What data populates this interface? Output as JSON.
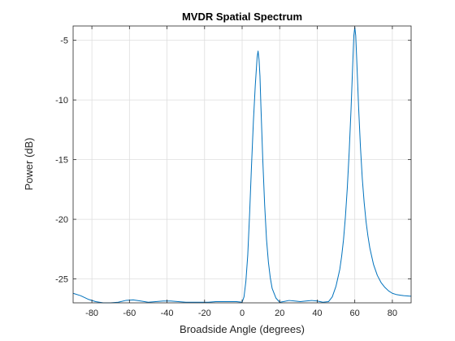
{
  "chart_data": {
    "type": "line",
    "title": "MVDR Spatial Spectrum",
    "xlabel": "Broadside Angle (degrees)",
    "ylabel": "Power (dB)",
    "xlim": [
      -90,
      90
    ],
    "ylim": [
      -27,
      -3.8
    ],
    "xticks": [
      -80,
      -60,
      -40,
      -20,
      0,
      20,
      40,
      60,
      80
    ],
    "yticks": [
      -5,
      -10,
      -15,
      -20,
      -25
    ],
    "grid": true,
    "legend": "none",
    "series": [
      {
        "color": "#0072BD",
        "x": [
          -90,
          -86,
          -82,
          -78,
          -74,
          -70,
          -66,
          -62,
          -58,
          -54,
          -50,
          -46,
          -42,
          -38,
          -34,
          -30,
          -26,
          -22,
          -18,
          -14,
          -10,
          -6,
          -3,
          0,
          1,
          2,
          3,
          4,
          5,
          6,
          7,
          8,
          8.5,
          9,
          9.5,
          10,
          11,
          12,
          13,
          14,
          15,
          16,
          18,
          20,
          22,
          25,
          28,
          31,
          34,
          37,
          40,
          43,
          46,
          48,
          50,
          52,
          53,
          54,
          55,
          56,
          57,
          58,
          59,
          59.5,
          60,
          60.5,
          61,
          62,
          63,
          64,
          65,
          66,
          67,
          68,
          70,
          72,
          74,
          76,
          78,
          80,
          82,
          84,
          86,
          88,
          90
        ],
        "y": [
          -26.2,
          -26.4,
          -26.7,
          -26.9,
          -27.0,
          -27.0,
          -26.95,
          -26.8,
          -26.75,
          -26.85,
          -26.95,
          -26.9,
          -26.85,
          -26.85,
          -26.9,
          -26.95,
          -26.95,
          -26.95,
          -26.95,
          -26.9,
          -26.9,
          -26.9,
          -26.9,
          -26.95,
          -26.5,
          -25.2,
          -23.0,
          -19.5,
          -15.5,
          -11.8,
          -8.8,
          -6.4,
          -5.9,
          -6.6,
          -8.0,
          -10.5,
          -15.0,
          -18.8,
          -21.7,
          -23.6,
          -24.9,
          -25.8,
          -26.6,
          -26.95,
          -26.9,
          -26.8,
          -26.85,
          -26.9,
          -26.85,
          -26.8,
          -26.85,
          -26.95,
          -26.9,
          -26.5,
          -25.6,
          -24.2,
          -23.1,
          -21.7,
          -19.8,
          -17.4,
          -14.4,
          -10.8,
          -6.6,
          -4.6,
          -3.9,
          -4.6,
          -6.5,
          -10.5,
          -13.9,
          -16.6,
          -18.6,
          -20.2,
          -21.4,
          -22.4,
          -23.8,
          -24.7,
          -25.3,
          -25.7,
          -26.0,
          -26.2,
          -26.3,
          -26.35,
          -26.4,
          -26.42,
          -26.45
        ]
      }
    ]
  }
}
